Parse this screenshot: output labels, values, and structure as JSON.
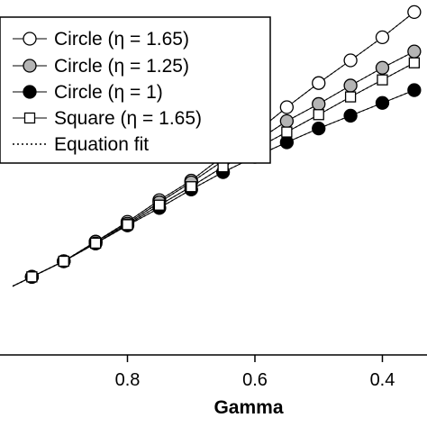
{
  "chart_data": {
    "type": "line",
    "xlabel": "Gamma",
    "ylabel": "",
    "x_reversed": true,
    "xlim": [
      1.0,
      0.33
    ],
    "ylim": [
      0.0,
      1.0
    ],
    "x_ticks": [
      {
        "value": 0.8,
        "label": "0.8"
      },
      {
        "value": 0.6,
        "label": "0.6"
      },
      {
        "value": 0.4,
        "label": "0.4"
      }
    ],
    "legend_position": "top-left",
    "series": [
      {
        "name": "Circle (η = 1.65)",
        "marker": "circle-open",
        "x": [
          0.95,
          0.9,
          0.85,
          0.8,
          0.75,
          0.7,
          0.65,
          0.6,
          0.55,
          0.5,
          0.45,
          0.4,
          0.35
        ],
        "y": [
          0.22,
          0.264,
          0.319,
          0.375,
          0.436,
          0.491,
          0.56,
          0.625,
          0.698,
          0.766,
          0.83,
          0.895,
          0.966
        ]
      },
      {
        "name": "Circle (η = 1.25)",
        "marker": "circle-gray",
        "x": [
          0.95,
          0.9,
          0.85,
          0.8,
          0.75,
          0.7,
          0.65,
          0.6,
          0.55,
          0.5,
          0.45,
          0.4,
          0.35
        ],
        "y": [
          0.22,
          0.264,
          0.319,
          0.37,
          0.43,
          0.486,
          0.547,
          0.6,
          0.659,
          0.707,
          0.759,
          0.809,
          0.855
        ]
      },
      {
        "name": "Circle (η = 1)",
        "marker": "circle-filled",
        "x": [
          0.95,
          0.9,
          0.85,
          0.8,
          0.75,
          0.7,
          0.65,
          0.6,
          0.55,
          0.5,
          0.45,
          0.4,
          0.35
        ],
        "y": [
          0.22,
          0.264,
          0.314,
          0.365,
          0.414,
          0.466,
          0.515,
          0.558,
          0.599,
          0.638,
          0.674,
          0.71,
          0.746
        ]
      },
      {
        "name": "Square (η = 1.65)",
        "marker": "square-open",
        "x": [
          0.95,
          0.9,
          0.85,
          0.8,
          0.75,
          0.7,
          0.65,
          0.6,
          0.55,
          0.5,
          0.45,
          0.4,
          0.35
        ],
        "y": [
          0.22,
          0.264,
          0.315,
          0.367,
          0.422,
          0.474,
          0.53,
          0.58,
          0.628,
          0.677,
          0.727,
          0.775,
          0.823
        ]
      },
      {
        "name": "Equation fit",
        "marker": "dotted-line"
      }
    ]
  }
}
